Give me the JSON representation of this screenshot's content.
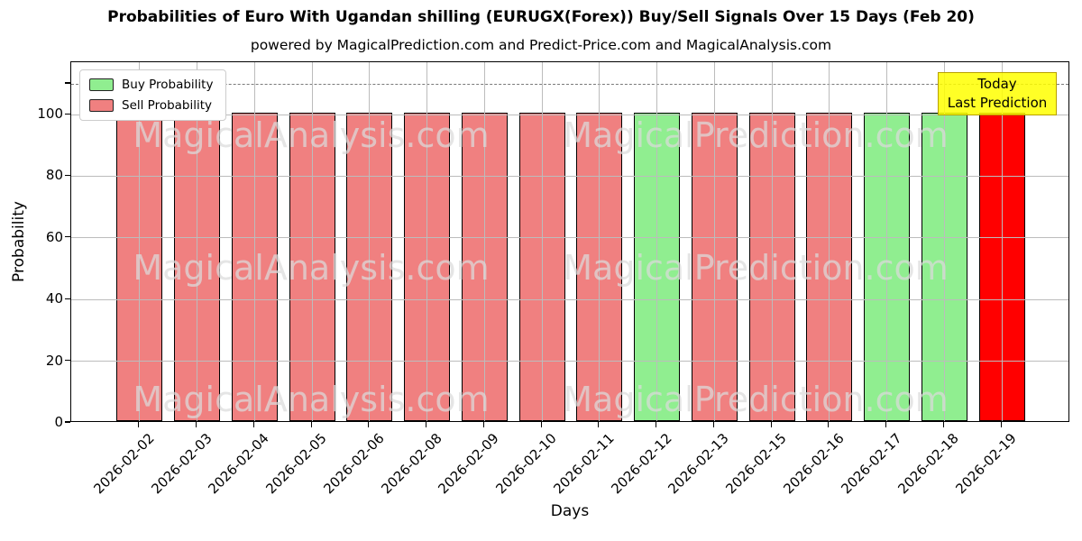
{
  "header": {
    "title": "Probabilities of Euro With Ugandan shilling (EURUGX(Forex)) Buy/Sell Signals Over 15 Days (Feb 20)",
    "subtitle": "powered by MagicalPrediction.com and Predict-Price.com and MagicalAnalysis.com"
  },
  "legend": {
    "items": [
      {
        "label": "Buy Probability",
        "color": "#90EE90"
      },
      {
        "label": "Sell Probability",
        "color": "#F08080"
      }
    ]
  },
  "annotation_box": {
    "line1": "Today",
    "line2": "Last Prediction",
    "bg_color": "#FFFF00",
    "border_color": "#B8A000"
  },
  "watermarks": [
    "MagicalAnalysis.com",
    "MagicalPrediction.com"
  ],
  "chart_data": {
    "type": "bar",
    "title": "Probabilities of Euro With Ugandan shilling (EURUGX(Forex)) Buy/Sell Signals Over 15 Days (Feb 20)",
    "subtitle": "powered by MagicalPrediction.com and Predict-Price.com and MagicalAnalysis.com",
    "xlabel": "Days",
    "ylabel": "Probability",
    "ylim": [
      0,
      117
    ],
    "yticks": [
      0,
      20,
      40,
      60,
      80,
      100
    ],
    "dashed_line_y": 110,
    "grid": true,
    "legend_position": "upper left",
    "categories": [
      "2026-02-02",
      "2026-02-03",
      "2026-02-04",
      "2026-02-05",
      "2026-02-06",
      "2026-02-08",
      "2026-02-09",
      "2026-02-10",
      "2026-02-11",
      "2026-02-12",
      "2026-02-13",
      "2026-02-15",
      "2026-02-16",
      "2026-02-17",
      "2026-02-18",
      "2026-02-19"
    ],
    "series": [
      {
        "name": "Buy Probability",
        "color": "#90EE90",
        "values": [
          0,
          0,
          0,
          0,
          0,
          0,
          0,
          0,
          0,
          100,
          0,
          0,
          0,
          100,
          100,
          0
        ]
      },
      {
        "name": "Sell Probability",
        "color": "#F08080",
        "values": [
          100,
          100,
          100,
          100,
          100,
          100,
          100,
          100,
          100,
          0,
          100,
          100,
          100,
          0,
          0,
          0
        ]
      },
      {
        "name": "Today (Last Prediction)",
        "color": "#FF0000",
        "values": [
          0,
          0,
          0,
          0,
          0,
          0,
          0,
          0,
          0,
          0,
          0,
          0,
          0,
          0,
          0,
          100
        ]
      }
    ],
    "bars": [
      {
        "date": "2026-02-02",
        "value": 100,
        "kind": "sell"
      },
      {
        "date": "2026-02-03",
        "value": 100,
        "kind": "sell"
      },
      {
        "date": "2026-02-04",
        "value": 100,
        "kind": "sell"
      },
      {
        "date": "2026-02-05",
        "value": 100,
        "kind": "sell"
      },
      {
        "date": "2026-02-06",
        "value": 100,
        "kind": "sell"
      },
      {
        "date": "2026-02-08",
        "value": 100,
        "kind": "sell"
      },
      {
        "date": "2026-02-09",
        "value": 100,
        "kind": "sell"
      },
      {
        "date": "2026-02-10",
        "value": 100,
        "kind": "sell"
      },
      {
        "date": "2026-02-11",
        "value": 100,
        "kind": "sell"
      },
      {
        "date": "2026-02-12",
        "value": 100,
        "kind": "buy"
      },
      {
        "date": "2026-02-13",
        "value": 100,
        "kind": "sell"
      },
      {
        "date": "2026-02-15",
        "value": 100,
        "kind": "sell"
      },
      {
        "date": "2026-02-16",
        "value": 100,
        "kind": "sell"
      },
      {
        "date": "2026-02-17",
        "value": 100,
        "kind": "buy"
      },
      {
        "date": "2026-02-18",
        "value": 100,
        "kind": "buy"
      },
      {
        "date": "2026-02-19",
        "value": 100,
        "kind": "today"
      }
    ],
    "colors": {
      "buy": "#90EE90",
      "sell": "#F08080",
      "today": "#FF0000",
      "edge": "#000000",
      "grid": "#BCBCBC"
    }
  }
}
